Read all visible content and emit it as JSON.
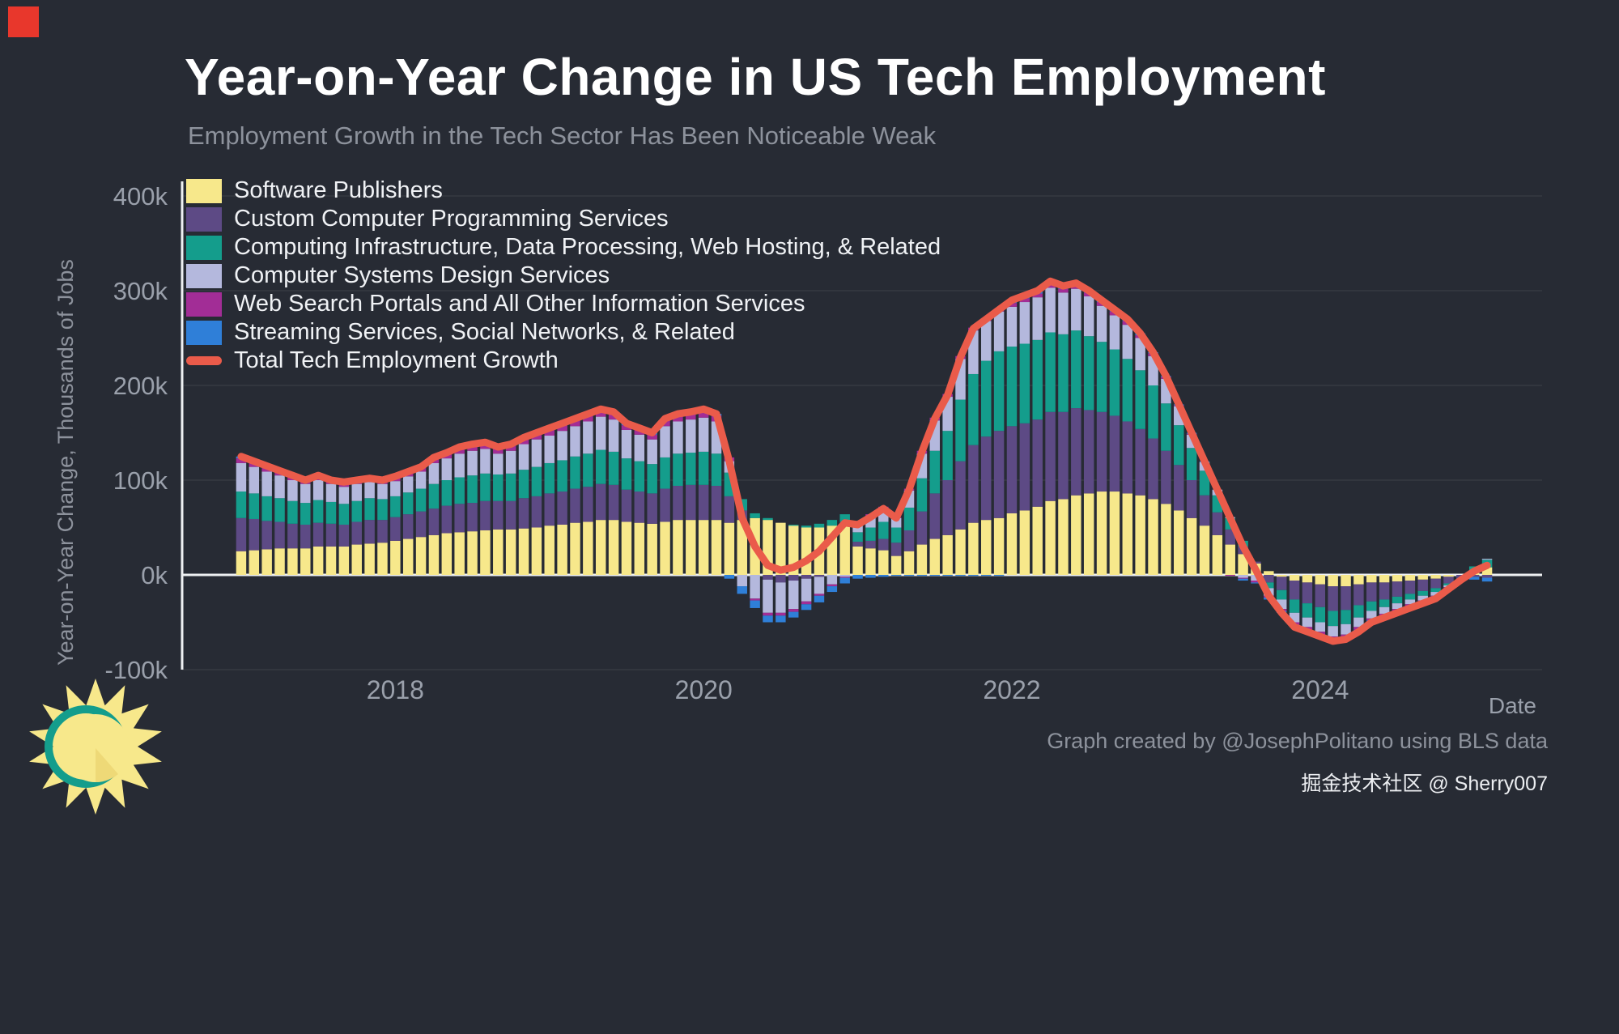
{
  "page": {
    "credit": "Graph created by @JosephPolitano using BLS data",
    "watermark": "掘金技术社区 @ Sherry007"
  },
  "chart_data": {
    "type": "bar",
    "variant": "stacked-monthly-bars-with-total-line",
    "title": "Year-on-Year Change in US Tech Employment",
    "subtitle": "Employment Growth in the Tech Sector Has Been Noticeable Weak",
    "xlabel": "Date",
    "ylabel": "Year-on-Year Change, Thousands of Jobs",
    "unit": "thousands of jobs",
    "x_start": "2017-01",
    "x_end": "2025-02",
    "ylim": [
      -100,
      420
    ],
    "grid": "faint-horizontal",
    "legend_position": "top-left-inside",
    "background_color": "#272b34",
    "ytick_values": [
      400,
      300,
      200,
      100,
      0,
      -100
    ],
    "ytick_labels": [
      "400k",
      "300k",
      "200k",
      "100k",
      "0k",
      "-100k"
    ],
    "xticks": [
      {
        "index": 12,
        "label": "2018"
      },
      {
        "index": 36,
        "label": "2020"
      },
      {
        "index": 60,
        "label": "2022"
      },
      {
        "index": 84,
        "label": "2024"
      }
    ],
    "series": [
      {
        "name": "Software Publishers",
        "color": "#f7e88b",
        "values": [
          25,
          26,
          27,
          28,
          28,
          28,
          30,
          30,
          30,
          32,
          33,
          34,
          36,
          38,
          40,
          42,
          44,
          45,
          46,
          47,
          48,
          48,
          49,
          50,
          52,
          53,
          55,
          56,
          58,
          58,
          56,
          55,
          54,
          56,
          58,
          58,
          58,
          58,
          55,
          58,
          60,
          58,
          55,
          52,
          50,
          50,
          52,
          54,
          30,
          28,
          26,
          20,
          25,
          32,
          38,
          42,
          48,
          55,
          58,
          60,
          65,
          68,
          72,
          78,
          80,
          84,
          86,
          88,
          88,
          86,
          84,
          80,
          75,
          68,
          60,
          52,
          42,
          32,
          22,
          12,
          4,
          -2,
          -6,
          -8,
          -10,
          -12,
          -12,
          -10,
          -8,
          -8,
          -7,
          -6,
          -5,
          -4,
          -2,
          0,
          5,
          8
        ]
      },
      {
        "name": "Custom Computer Programming Services",
        "color": "#5d4a85",
        "values": [
          35,
          33,
          30,
          28,
          26,
          25,
          25,
          24,
          23,
          24,
          25,
          24,
          25,
          26,
          27,
          28,
          29,
          30,
          30,
          31,
          30,
          30,
          32,
          33,
          34,
          35,
          36,
          37,
          38,
          37,
          34,
          33,
          32,
          35,
          36,
          37,
          37,
          36,
          28,
          10,
          0,
          -5,
          -8,
          -6,
          -4,
          -2,
          0,
          2,
          5,
          8,
          12,
          14,
          22,
          35,
          48,
          58,
          72,
          82,
          88,
          92,
          92,
          92,
          92,
          94,
          92,
          92,
          88,
          84,
          80,
          76,
          70,
          64,
          56,
          48,
          40,
          32,
          24,
          16,
          8,
          2,
          -8,
          -14,
          -20,
          -22,
          -24,
          -26,
          -25,
          -22,
          -20,
          -18,
          -16,
          -14,
          -12,
          -10,
          -7,
          -4,
          -2,
          -3
        ]
      },
      {
        "name": "Computing Infrastructure, Data Processing, Web Hosting, & Related",
        "color": "#149d8c",
        "values": [
          28,
          27,
          26,
          25,
          24,
          23,
          24,
          23,
          22,
          22,
          23,
          22,
          22,
          23,
          24,
          26,
          27,
          28,
          29,
          29,
          28,
          29,
          30,
          31,
          32,
          33,
          34,
          35,
          36,
          35,
          33,
          32,
          31,
          33,
          34,
          34,
          35,
          34,
          25,
          12,
          5,
          2,
          0,
          1,
          2,
          4,
          6,
          8,
          10,
          14,
          18,
          16,
          24,
          35,
          45,
          52,
          65,
          75,
          80,
          84,
          84,
          84,
          84,
          84,
          82,
          82,
          78,
          74,
          70,
          66,
          62,
          56,
          50,
          42,
          34,
          26,
          18,
          12,
          6,
          0,
          -6,
          -10,
          -14,
          -15,
          -16,
          -16,
          -15,
          -13,
          -10,
          -8,
          -7,
          -6,
          -5,
          -4,
          -2,
          0,
          4,
          8
        ]
      },
      {
        "name": "Computer Systems Design Services",
        "color": "#b4b8dd",
        "values": [
          30,
          28,
          26,
          24,
          22,
          20,
          21,
          19,
          18,
          18,
          17,
          16,
          16,
          17,
          18,
          22,
          23,
          25,
          26,
          26,
          22,
          24,
          27,
          29,
          29,
          31,
          32,
          34,
          35,
          34,
          30,
          28,
          26,
          33,
          34,
          35,
          36,
          34,
          12,
          -12,
          -25,
          -35,
          -32,
          -30,
          -24,
          -18,
          -10,
          -2,
          10,
          12,
          14,
          10,
          18,
          26,
          32,
          36,
          43,
          46,
          42,
          42,
          42,
          44,
          45,
          47,
          44,
          44,
          42,
          38,
          36,
          36,
          34,
          31,
          26,
          20,
          14,
          9,
          6,
          1,
          -3,
          -6,
          -8,
          -10,
          -10,
          -10,
          -10,
          -11,
          -11,
          -10,
          -8,
          -7,
          -6,
          -5,
          -5,
          -4,
          -2,
          -1,
          0,
          1
        ]
      },
      {
        "name": "Web Search Portals and All Other Information Services",
        "color": "#a22d96",
        "values": [
          5,
          5,
          5,
          5,
          5,
          4,
          5,
          4,
          5,
          4,
          4,
          4,
          4,
          4,
          4,
          5,
          5,
          5,
          5,
          5,
          5,
          5,
          5,
          5,
          6,
          6,
          6,
          6,
          6,
          6,
          5,
          5,
          5,
          6,
          6,
          6,
          6,
          6,
          4,
          0,
          -2,
          -3,
          -3,
          -3,
          -3,
          -2,
          -2,
          -1,
          2,
          2,
          2,
          1,
          2,
          3,
          3,
          3,
          3,
          3,
          3,
          3,
          4,
          4,
          4,
          4,
          4,
          4,
          4,
          4,
          4,
          4,
          3,
          3,
          2,
          1,
          1,
          0,
          0,
          -1,
          -1,
          -2,
          -2,
          -2,
          -3,
          -3,
          -3,
          -3,
          -3,
          -3,
          -2,
          -2,
          -2,
          -2,
          -2,
          -2,
          -1,
          0,
          0,
          0
        ]
      },
      {
        "name": "Streaming Services, Social Networks, & Related",
        "color": "#2f7fd8",
        "values": [
          2,
          1,
          1,
          0,
          0,
          0,
          0,
          0,
          0,
          0,
          0,
          0,
          1,
          1,
          1,
          1,
          1,
          2,
          2,
          2,
          2,
          2,
          2,
          2,
          2,
          2,
          2,
          2,
          2,
          2,
          2,
          2,
          2,
          2,
          2,
          2,
          3,
          2,
          -4,
          -8,
          -8,
          -7,
          -7,
          -6,
          -6,
          -7,
          -6,
          -6,
          -4,
          -3,
          -2,
          -1,
          -1,
          -1,
          -1,
          -1,
          -1,
          -1,
          -1,
          -1,
          3,
          3,
          3,
          3,
          3,
          2,
          2,
          2,
          2,
          2,
          2,
          1,
          1,
          1,
          1,
          1,
          0,
          0,
          -2,
          -1,
          -2,
          -2,
          -2,
          -2,
          -2,
          -2,
          -2,
          -2,
          -2,
          -2,
          -2,
          -2,
          -1,
          -1,
          -1,
          0,
          -3,
          -4
        ]
      }
    ],
    "total_line": {
      "name": "Total Tech Employment Growth",
      "color": "#ea5b4a",
      "values": [
        125,
        120,
        115,
        110,
        105,
        100,
        105,
        100,
        98,
        100,
        102,
        100,
        104,
        109,
        114,
        124,
        129,
        135,
        138,
        140,
        135,
        138,
        145,
        150,
        155,
        160,
        165,
        170,
        175,
        172,
        160,
        155,
        150,
        165,
        170,
        172,
        175,
        170,
        120,
        60,
        30,
        10,
        5,
        8,
        15,
        25,
        40,
        55,
        53,
        61,
        70,
        60,
        90,
        130,
        165,
        190,
        230,
        260,
        270,
        280,
        290,
        295,
        300,
        310,
        305,
        308,
        300,
        290,
        280,
        270,
        255,
        235,
        210,
        180,
        150,
        120,
        90,
        60,
        30,
        5,
        -22,
        -40,
        -55,
        -60,
        -65,
        -70,
        -68,
        -60,
        -50,
        -45,
        -40,
        -35,
        -30,
        -25,
        -15,
        -5,
        4,
        10
      ]
    }
  }
}
